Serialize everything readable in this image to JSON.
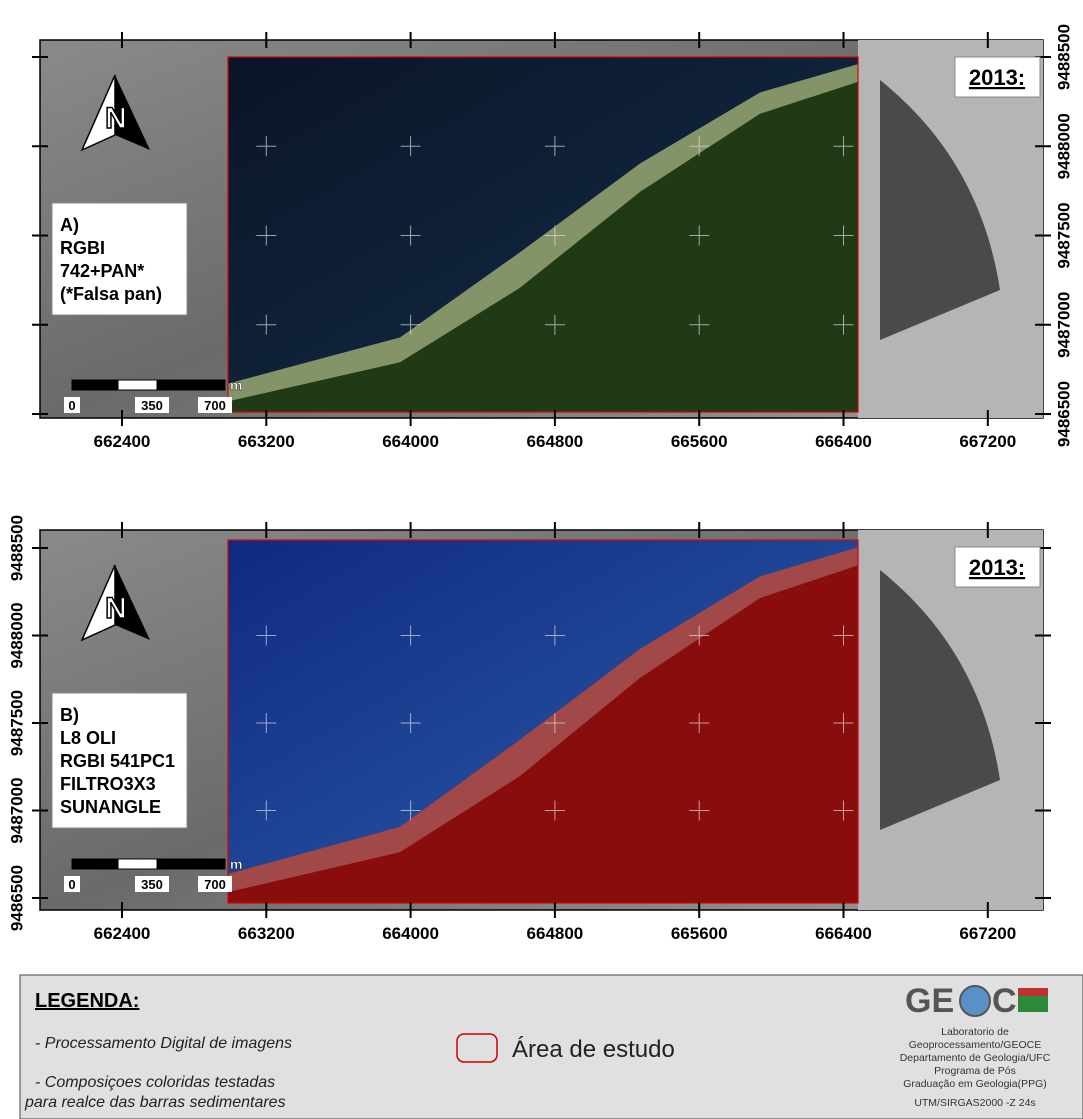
{
  "panels": [
    {
      "label_lines": [
        "A)",
        "RGBI",
        "742+PAN*",
        "(*Falsa pan)"
      ],
      "year": "2013:",
      "north": "N",
      "scale": {
        "unit": "m",
        "labels": [
          "0",
          "350",
          "700"
        ]
      },
      "xticks": [
        662400,
        663200,
        664000,
        664800,
        665600,
        666400,
        667200
      ],
      "yticks": [
        9486500,
        9487000,
        9487500,
        9488000,
        9488500
      ]
    },
    {
      "label_lines": [
        "B)",
        "L8 OLI",
        "RGBI 541PC1",
        "FILTRO3X3",
        "SUNANGLE"
      ],
      "year": "2013:",
      "north": "N",
      "scale": {
        "unit": "m",
        "labels": [
          "0",
          "350",
          "700"
        ]
      },
      "xticks": [
        662400,
        663200,
        664000,
        664800,
        665600,
        666400,
        667200
      ],
      "yticks": [
        9486500,
        9487000,
        9487500,
        9488000,
        9488500
      ]
    }
  ],
  "legend": {
    "title": "LEGENDA:",
    "items": [
      "- Processamento Digital de imagens",
      "- Composiçoes coloridas testadas",
      "para realce das barras sedimentares"
    ],
    "study_area": "Área de estudo"
  },
  "logo": {
    "left": "GE",
    "right": "C",
    "lines": [
      "Laboratorio de",
      "Geoprocessamento/GEOCE",
      "Departamento de Geologia/UFC",
      "Programa de Pós",
      "Graduação em Geologia(PPG)",
      "UTM/SIRGAS2000 -Z 24s"
    ]
  }
}
